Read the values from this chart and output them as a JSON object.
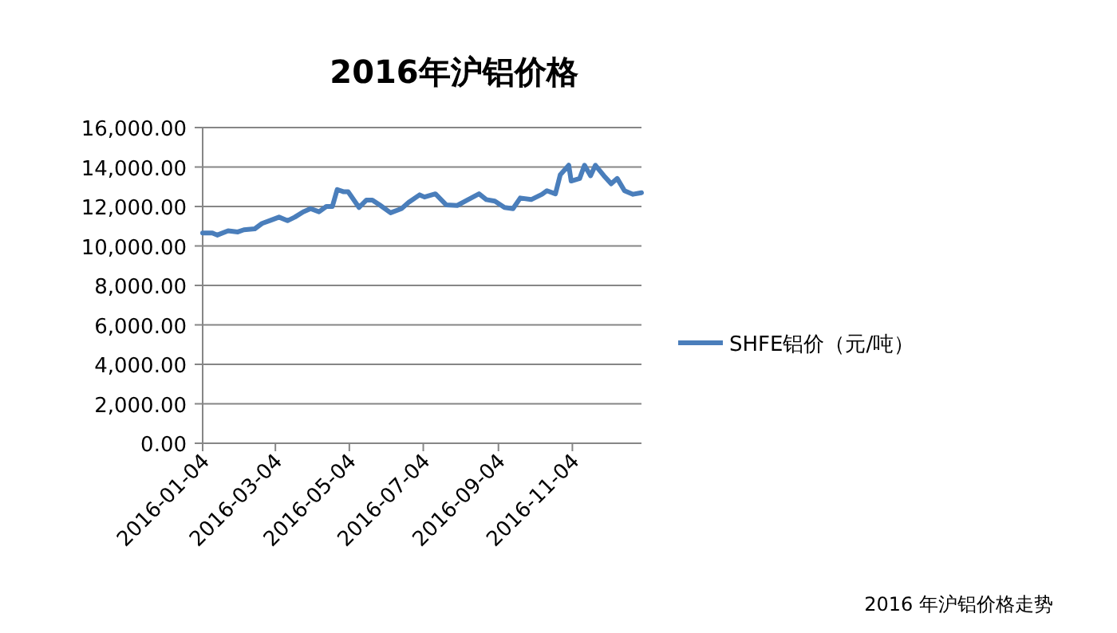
{
  "chart_data": {
    "type": "line",
    "title": "2016年沪铝价格",
    "x": [
      "2016-01-04",
      "2016-01-12",
      "2016-01-16",
      "2016-01-25",
      "2016-02-02",
      "2016-02-07",
      "2016-02-16",
      "2016-02-22",
      "2016-02-29",
      "2016-03-07",
      "2016-03-14",
      "2016-03-20",
      "2016-03-27",
      "2016-04-02",
      "2016-04-09",
      "2016-04-15",
      "2016-04-20",
      "2016-04-24",
      "2016-04-29",
      "2016-05-03",
      "2016-05-12",
      "2016-05-18",
      "2016-05-23",
      "2016-05-29",
      "2016-06-07",
      "2016-06-16",
      "2016-06-22",
      "2016-07-01",
      "2016-07-05",
      "2016-07-14",
      "2016-07-23",
      "2016-08-01",
      "2016-08-10",
      "2016-08-19",
      "2016-08-25",
      "2016-09-01",
      "2016-09-09",
      "2016-09-16",
      "2016-09-22",
      "2016-10-01",
      "2016-10-10",
      "2016-10-14",
      "2016-10-21",
      "2016-10-25",
      "2016-11-01",
      "2016-11-03",
      "2016-11-10",
      "2016-11-14",
      "2016-11-19",
      "2016-11-23",
      "2016-11-30",
      "2016-12-06",
      "2016-12-11",
      "2016-12-17",
      "2016-12-24",
      "2016-12-31"
    ],
    "series": [
      {
        "name": "SHFE铝价（元/吨）",
        "color": "#4a7ebb",
        "values": [
          10660,
          10660,
          10550,
          10770,
          10710,
          10820,
          10870,
          11140,
          11300,
          11460,
          11280,
          11460,
          11730,
          11890,
          11730,
          12000,
          12000,
          12860,
          12750,
          12750,
          11950,
          12320,
          12320,
          12080,
          11680,
          11890,
          12210,
          12590,
          12480,
          12640,
          12080,
          12050,
          12350,
          12640,
          12350,
          12270,
          11950,
          11890,
          12430,
          12350,
          12620,
          12800,
          12640,
          13610,
          14090,
          13290,
          13420,
          14090,
          13560,
          14090,
          13560,
          13150,
          13420,
          12800,
          12620,
          12700
        ]
      }
    ],
    "xlim": [
      "2016-01-04",
      "2016-12-31"
    ],
    "xticks": [
      "2016-01-04",
      "2016-03-04",
      "2016-05-04",
      "2016-07-04",
      "2016-09-04",
      "2016-11-04"
    ],
    "ylim": [
      0,
      16000
    ],
    "yticks": [
      {
        "value": 0,
        "label": "0.00"
      },
      {
        "value": 2000,
        "label": "2,000.00"
      },
      {
        "value": 4000,
        "label": "4,000.00"
      },
      {
        "value": 6000,
        "label": "6,000.00"
      },
      {
        "value": 8000,
        "label": "8,000.00"
      },
      {
        "value": 10000,
        "label": "10,000.00"
      },
      {
        "value": 12000,
        "label": "12,000.00"
      },
      {
        "value": 14000,
        "label": "14,000.00"
      },
      {
        "value": 16000,
        "label": "16,000.00"
      }
    ],
    "grid": "y",
    "legend": "right",
    "line_style": "solid",
    "marker": "none",
    "annotations": [
      "2016 年沪铝价格走势"
    ]
  }
}
